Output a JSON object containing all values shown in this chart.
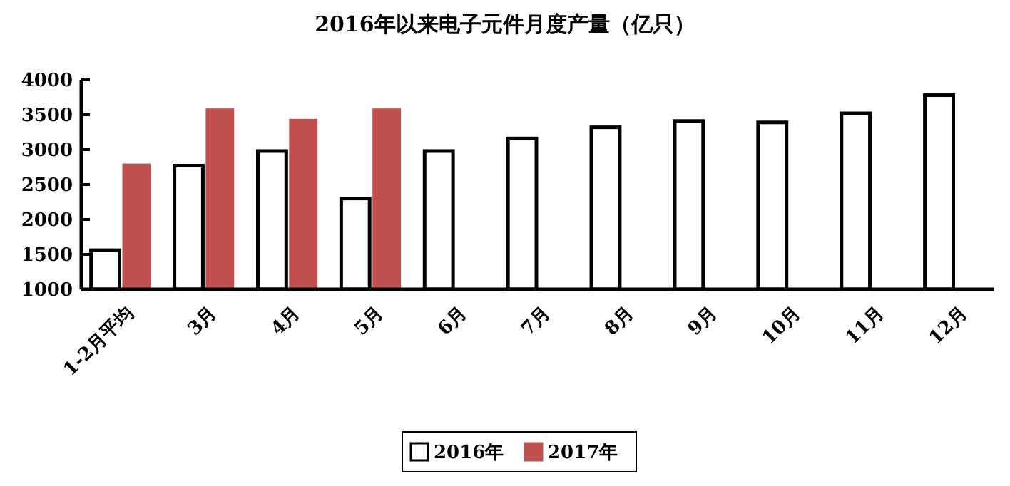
{
  "chart_data": {
    "type": "bar",
    "title": "2016年以来电子元件月度产量（亿只）",
    "categories": [
      "1-2月平均",
      "3月",
      "4月",
      "5月",
      "6月",
      "7月",
      "8月",
      "9月",
      "10月",
      "11月",
      "12月"
    ],
    "series": [
      {
        "name": "2016年",
        "color": "#ffffff",
        "values": [
          1560,
          2770,
          2980,
          2300,
          2980,
          3160,
          3320,
          3410,
          3390,
          3520,
          3780
        ]
      },
      {
        "name": "2017年",
        "color": "#c0504d",
        "values": [
          2800,
          3590,
          3440,
          3590,
          null,
          null,
          null,
          null,
          null,
          null,
          null
        ]
      }
    ],
    "ylim": [
      1000,
      4000
    ],
    "yticks": [
      1000,
      1500,
      2000,
      2500,
      3000,
      3500,
      4000
    ],
    "grid": false,
    "legend": "bottom"
  }
}
